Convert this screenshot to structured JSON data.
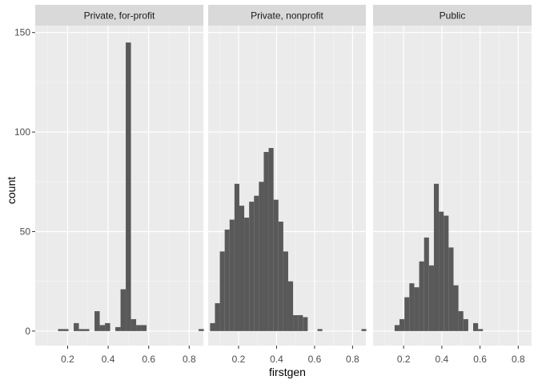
{
  "chart_data": {
    "type": "histogram",
    "facets": [
      "Private, for-profit",
      "Private, nonprofit",
      "Public"
    ],
    "xlabel": "firstgen",
    "ylabel": "count",
    "x_ticks": [
      "0.2",
      "0.4",
      "0.6",
      "0.8"
    ],
    "x_tick_values": [
      0.2,
      0.4,
      0.6,
      0.8
    ],
    "y_ticks": [
      "0",
      "50",
      "100",
      "150"
    ],
    "y_tick_values": [
      0,
      50,
      100,
      150
    ],
    "xlim": [
      0.04,
      0.87
    ],
    "ylim": [
      -7.3,
      153.5
    ],
    "bin_width": 0.0257,
    "bin_left_start": 0.05,
    "grid": true,
    "bar_color": "#595959",
    "panel_background": "#ebebeb",
    "strip_background": "#d9d9d9",
    "series": [
      {
        "name": "Private, for-profit",
        "values": [
          0,
          0,
          0,
          0,
          1,
          1,
          0,
          4,
          1,
          1,
          0,
          10,
          3,
          4,
          0,
          2,
          21,
          145,
          6,
          3,
          3,
          0,
          0,
          0,
          0,
          0,
          0,
          0,
          0,
          0,
          0,
          1
        ]
      },
      {
        "name": "Private, nonprofit",
        "values": [
          4,
          14,
          40,
          51,
          56,
          74,
          63,
          57,
          65,
          68,
          75,
          90,
          92,
          66,
          55,
          40,
          25,
          8,
          8,
          7,
          0,
          0,
          1,
          0,
          0,
          0,
          0,
          0,
          0,
          0,
          0,
          1
        ]
      },
      {
        "name": "Public",
        "values": [
          0,
          0,
          0,
          0,
          3,
          6,
          17,
          24,
          22,
          35,
          47,
          33,
          74,
          60,
          58,
          42,
          23,
          10,
          6,
          0,
          4,
          1,
          0,
          0,
          0,
          0,
          0,
          0,
          0,
          0,
          0,
          0
        ]
      }
    ]
  }
}
